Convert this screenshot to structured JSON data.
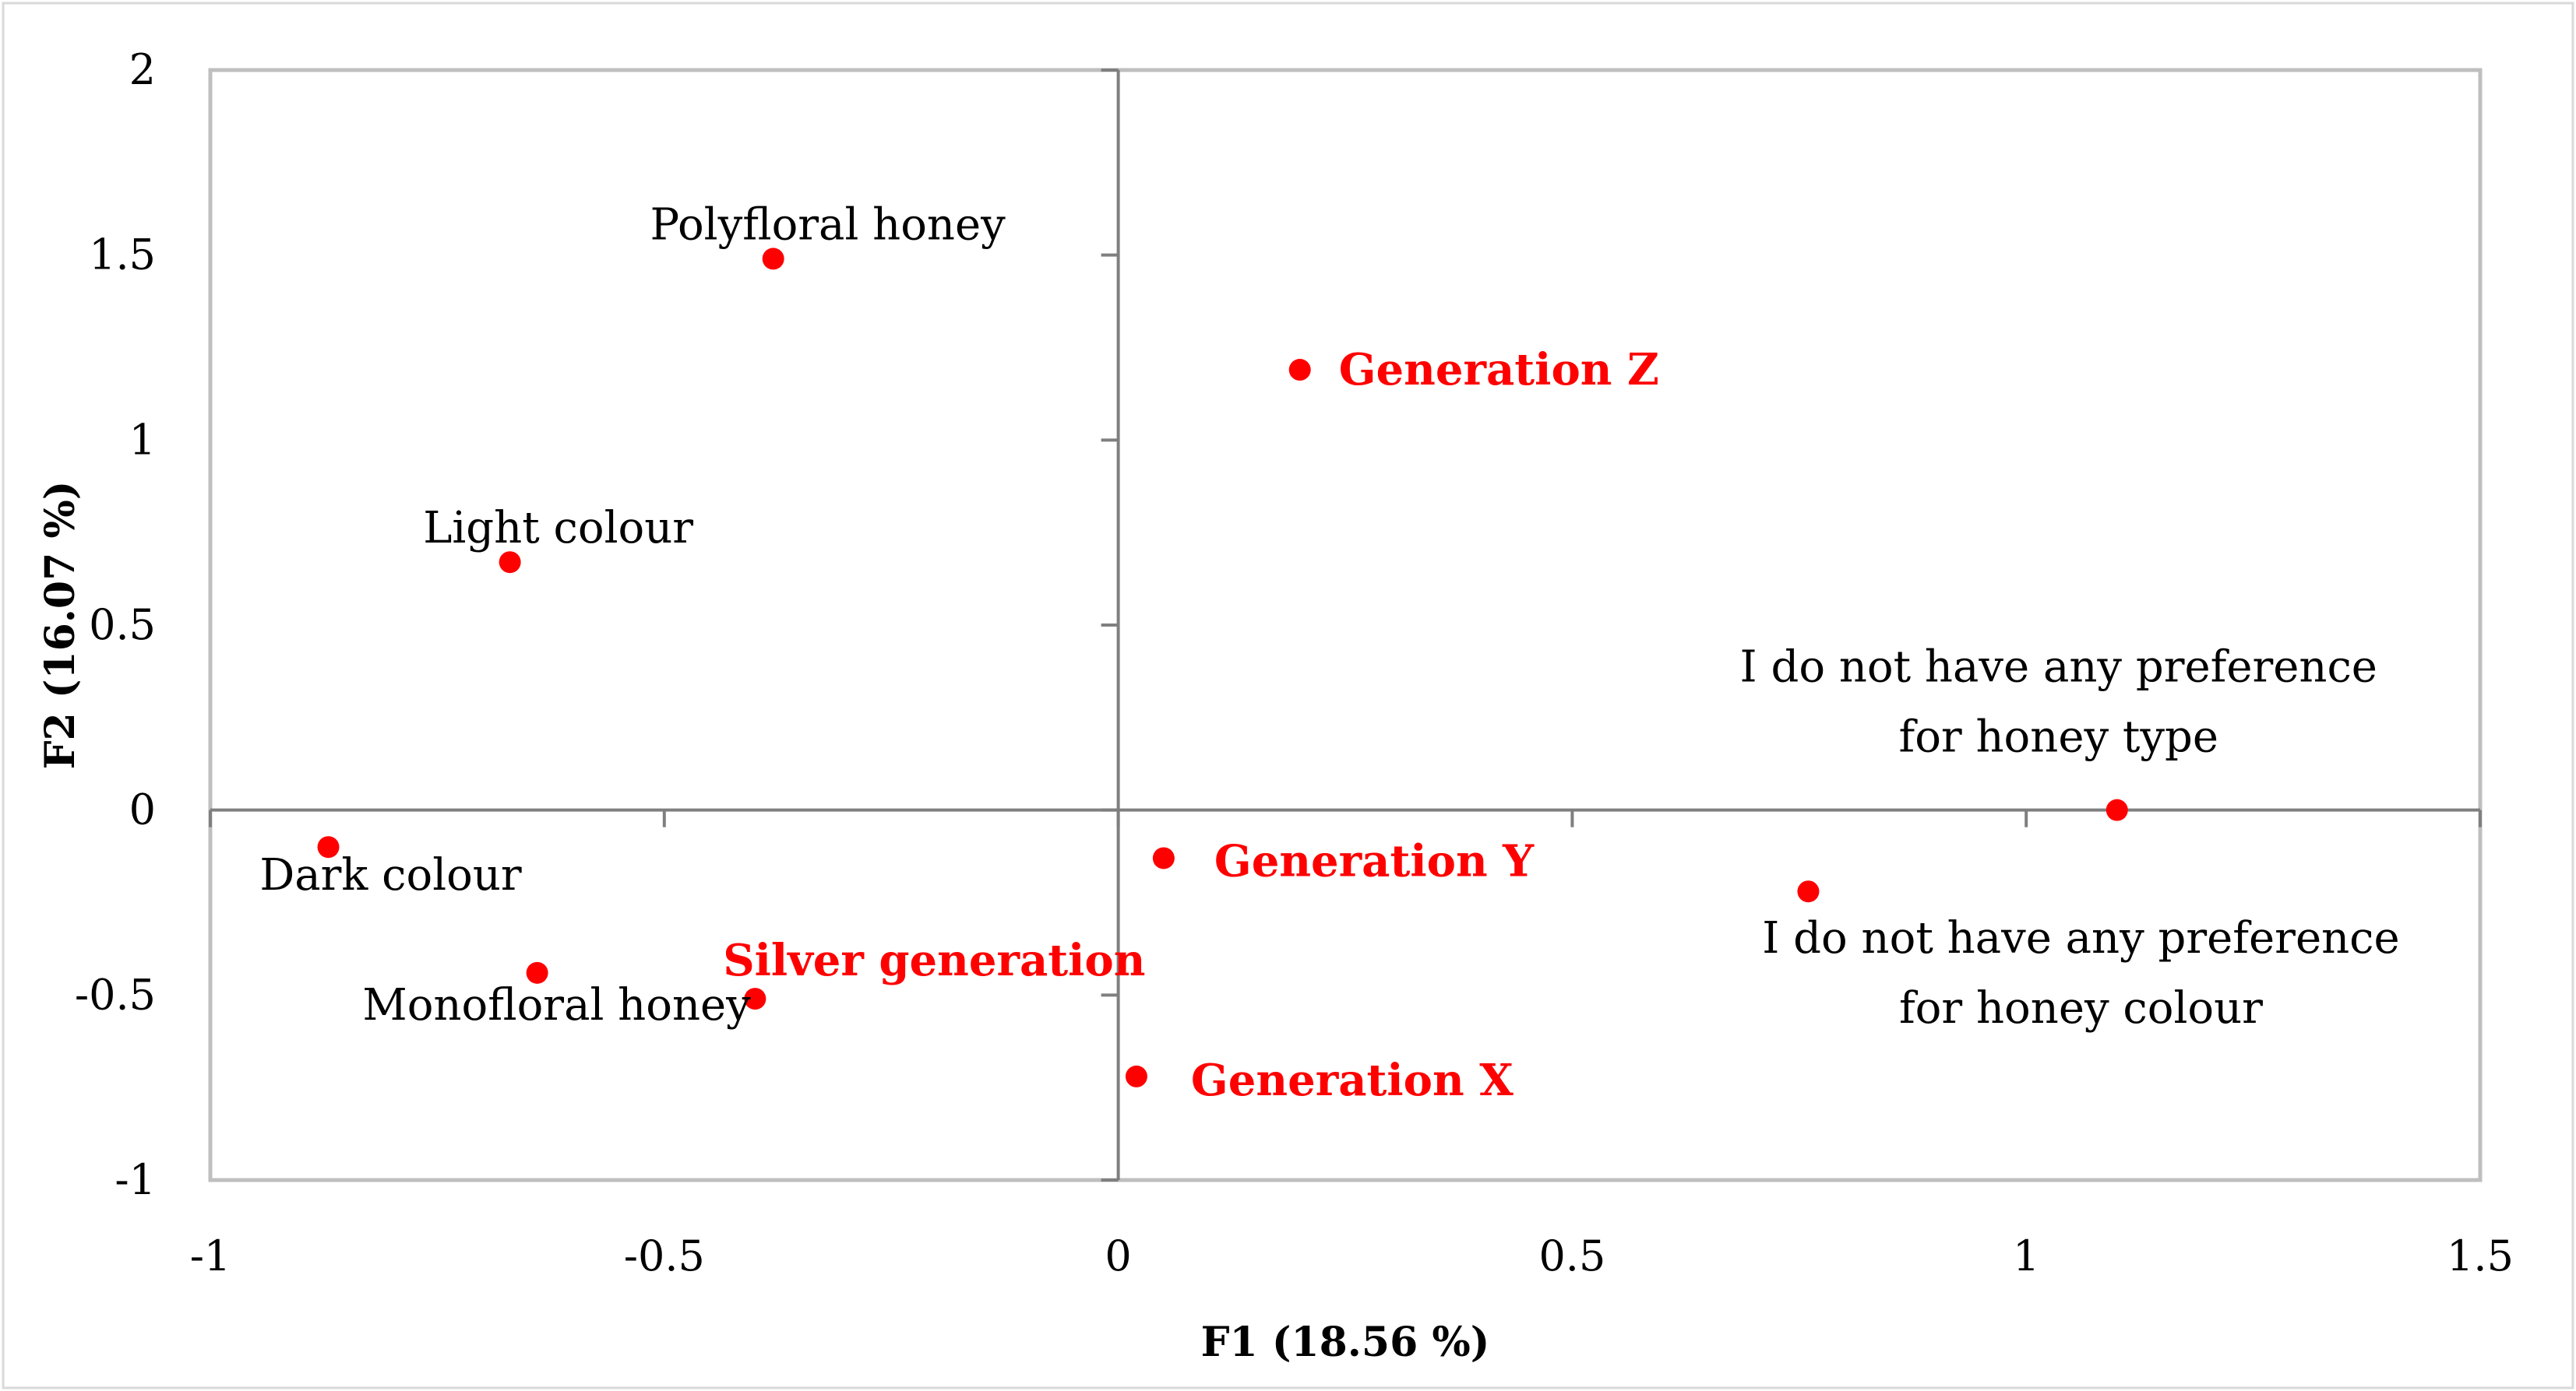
{
  "chart_data": {
    "type": "scatter",
    "xlabel": "F1 (18.56 %)",
    "ylabel": "F2 (16.07 %)",
    "xlim": [
      -1,
      1.5
    ],
    "ylim": [
      -1,
      2
    ],
    "x_ticks": [
      "-1",
      "-0.5",
      "0",
      "0.5",
      "1",
      "1.5"
    ],
    "y_ticks": [
      "2",
      "1.5",
      "1",
      "0.5",
      "0",
      "-0.5",
      "-1"
    ],
    "grid": false,
    "colors": {
      "points": "#ff0000",
      "active_label": "#ff0000",
      "supplementary_label": "#000000",
      "axes": "#7f7f7f",
      "frame": "#bfbfbf"
    },
    "points": [
      {
        "lines": [
          "Polyfloral honey"
        ],
        "x": -0.38,
        "y": 1.49,
        "group": "supplementary"
      },
      {
        "lines": [
          "Light colour"
        ],
        "x": -0.67,
        "y": 0.67,
        "group": "supplementary"
      },
      {
        "lines": [
          "Dark colour"
        ],
        "x": -0.87,
        "y": -0.1,
        "group": "supplementary"
      },
      {
        "lines": [
          "Monofloral honey"
        ],
        "x": -0.64,
        "y": -0.44,
        "group": "supplementary"
      },
      {
        "lines": [
          "Silver generation"
        ],
        "x": -0.4,
        "y": -0.51,
        "group": "active"
      },
      {
        "lines": [
          "Generation Z"
        ],
        "x": 0.2,
        "y": 1.19,
        "group": "active"
      },
      {
        "lines": [
          "Generation Y"
        ],
        "x": 0.05,
        "y": -0.13,
        "group": "active"
      },
      {
        "lines": [
          "Generation  X"
        ],
        "x": 0.02,
        "y": -0.72,
        "group": "active"
      },
      {
        "lines": [
          "I do not have any preference",
          "for honey type"
        ],
        "x": 1.1,
        "y": 0.0,
        "group": "supplementary"
      },
      {
        "lines": [
          "I do not have any preference",
          "for honey colour"
        ],
        "x": 0.76,
        "y": -0.22,
        "group": "supplementary"
      }
    ]
  }
}
